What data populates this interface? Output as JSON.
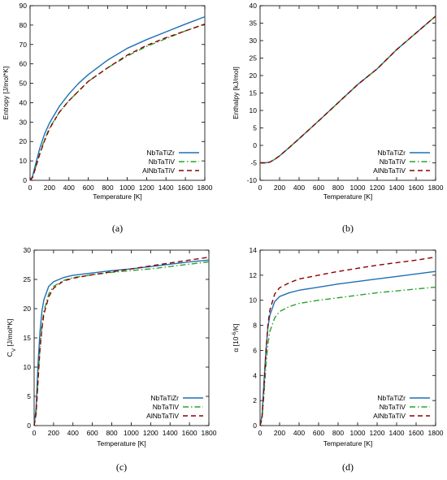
{
  "colors": {
    "NbTaTiZr": "#1f6fb4",
    "NbTaTiV": "#2ca02c",
    "AlNbTaTiV": "#8b0000"
  },
  "chart_data": [
    {
      "type": "line",
      "caption": "(a)",
      "xlabel": "Temperature [K]",
      "ylabel": "Entropy [J/mol*K]",
      "xlim": [
        0,
        1800
      ],
      "ylim": [
        0,
        90
      ],
      "xticks": [
        0,
        200,
        400,
        600,
        800,
        1000,
        1200,
        1400,
        1600,
        1800
      ],
      "yticks": [
        0,
        10,
        20,
        30,
        40,
        50,
        60,
        70,
        80,
        90
      ],
      "legend_position": "bottom-right",
      "series": [
        {
          "name": "NbTaTiZr",
          "style": "solid",
          "x": [
            0,
            25,
            50,
            100,
            150,
            200,
            300,
            400,
            500,
            600,
            800,
            1000,
            1200,
            1400,
            1600,
            1800
          ],
          "y": [
            0,
            2,
            7,
            16.5,
            24,
            29.5,
            38,
            44.5,
            50,
            54.5,
            62,
            68,
            72.5,
            76.5,
            80.5,
            84.3
          ]
        },
        {
          "name": "NbTaTiV",
          "style": "dashdot",
          "x": [
            0,
            25,
            50,
            100,
            150,
            200,
            300,
            400,
            500,
            600,
            800,
            1000,
            1200,
            1400,
            1600,
            1800
          ],
          "y": [
            0,
            1.5,
            5.5,
            14,
            21,
            27,
            35,
            41,
            46,
            51,
            58,
            64,
            69,
            73,
            77,
            80.5
          ]
        },
        {
          "name": "AlNbTaTiV",
          "style": "dashed",
          "x": [
            0,
            25,
            50,
            100,
            150,
            200,
            300,
            400,
            500,
            600,
            800,
            1000,
            1200,
            1400,
            1600,
            1800
          ],
          "y": [
            0,
            1.4,
            5.3,
            13.5,
            20.5,
            26.5,
            35,
            41,
            46,
            51,
            58,
            64.5,
            69.5,
            73.5,
            77,
            80.5
          ]
        }
      ]
    },
    {
      "type": "line",
      "caption": "(b)",
      "xlabel": "Temperature [K]",
      "ylabel": "Enthalpy [kJ/mol]",
      "xlim": [
        0,
        1800
      ],
      "ylim": [
        -10,
        40
      ],
      "xticks": [
        0,
        200,
        400,
        600,
        800,
        1000,
        1200,
        1400,
        1600,
        1800
      ],
      "yticks": [
        -10,
        -5,
        0,
        5,
        10,
        15,
        20,
        25,
        30,
        35,
        40
      ],
      "legend_position": "bottom-right",
      "series": [
        {
          "name": "NbTaTiZr",
          "style": "solid",
          "x": [
            0,
            50,
            100,
            150,
            200,
            300,
            400,
            600,
            800,
            1000,
            1200,
            1400,
            1600,
            1800
          ],
          "y": [
            -5,
            -5,
            -4.8,
            -4,
            -3,
            -0.6,
            1.9,
            7,
            12.2,
            17.4,
            21.9,
            27.4,
            32.2,
            37
          ]
        },
        {
          "name": "NbTaTiV",
          "style": "dashdot",
          "x": [
            0,
            50,
            100,
            150,
            200,
            300,
            400,
            600,
            800,
            1000,
            1200,
            1400,
            1600,
            1800
          ],
          "y": [
            -5,
            -5,
            -4.8,
            -4,
            -3,
            -0.6,
            1.9,
            7,
            12.2,
            17.4,
            21.9,
            27.4,
            32.2,
            37
          ]
        },
        {
          "name": "AlNbTaTiV",
          "style": "dashed",
          "x": [
            0,
            50,
            100,
            150,
            200,
            300,
            400,
            600,
            800,
            1000,
            1200,
            1400,
            1600,
            1800
          ],
          "y": [
            -5,
            -5,
            -4.8,
            -4,
            -3,
            -0.6,
            1.9,
            7,
            12.2,
            17.4,
            21.9,
            27.4,
            32.2,
            37
          ]
        }
      ]
    },
    {
      "type": "line",
      "caption": "(c)",
      "xlabel": "Temperature [K]",
      "ylabel_main": "C",
      "ylabel_sub": "V",
      "ylabel_rest": " [J/mol*K]",
      "xlim": [
        0,
        1800
      ],
      "ylim": [
        0,
        30
      ],
      "xticks": [
        0,
        200,
        400,
        600,
        800,
        1000,
        1200,
        1400,
        1600,
        1800
      ],
      "yticks": [
        0,
        5,
        10,
        15,
        20,
        25,
        30
      ],
      "legend_position": "bottom-right",
      "series": [
        {
          "name": "NbTaTiZr",
          "style": "solid",
          "x": [
            0,
            20,
            40,
            60,
            80,
            100,
            150,
            200,
            300,
            400,
            600,
            800,
            1000,
            1200,
            1400,
            1600,
            1800
          ],
          "y": [
            0,
            3,
            10.5,
            16,
            19.5,
            21.5,
            23.8,
            24.6,
            25.3,
            25.7,
            26.1,
            26.5,
            26.8,
            27.2,
            27.6,
            28,
            28.3
          ]
        },
        {
          "name": "NbTaTiV",
          "style": "dashdot",
          "x": [
            0,
            20,
            40,
            60,
            80,
            100,
            150,
            200,
            300,
            400,
            600,
            800,
            1000,
            1200,
            1400,
            1600,
            1800
          ],
          "y": [
            0,
            2,
            8,
            13.5,
            17,
            19.5,
            22.5,
            23.8,
            24.8,
            25.3,
            25.8,
            26.2,
            26.5,
            26.8,
            27.2,
            27.6,
            28
          ]
        },
        {
          "name": "AlNbTaTiV",
          "style": "dashed",
          "x": [
            0,
            20,
            40,
            60,
            80,
            100,
            150,
            200,
            300,
            400,
            600,
            800,
            1000,
            1200,
            1400,
            1600,
            1800
          ],
          "y": [
            0,
            2,
            7.5,
            13,
            16.5,
            19,
            22,
            23.5,
            24.7,
            25.2,
            25.8,
            26.3,
            26.8,
            27.3,
            27.8,
            28.3,
            28.8
          ]
        }
      ]
    },
    {
      "type": "line",
      "caption": "(d)",
      "xlabel": "Temperature [K]",
      "ylabel_main": "α [10",
      "ylabel_sup": "-6",
      "ylabel_rest": "/K]",
      "xlim": [
        0,
        1800
      ],
      "ylim": [
        0,
        14
      ],
      "xticks": [
        0,
        200,
        400,
        600,
        800,
        1000,
        1200,
        1400,
        1600,
        1800
      ],
      "yticks": [
        0,
        2,
        4,
        6,
        8,
        10,
        12,
        14
      ],
      "legend_position": "bottom-right",
      "series": [
        {
          "name": "NbTaTiZr",
          "style": "solid",
          "x": [
            0,
            20,
            40,
            60,
            80,
            100,
            150,
            200,
            300,
            400,
            600,
            800,
            1000,
            1200,
            1400,
            1600,
            1800
          ],
          "y": [
            0,
            0.8,
            3.5,
            6,
            7.8,
            8.8,
            9.9,
            10.3,
            10.6,
            10.8,
            11.05,
            11.3,
            11.5,
            11.7,
            11.9,
            12.1,
            12.3
          ]
        },
        {
          "name": "NbTaTiV",
          "style": "dashdot",
          "x": [
            0,
            20,
            40,
            60,
            80,
            100,
            150,
            200,
            300,
            400,
            600,
            800,
            1000,
            1200,
            1400,
            1600,
            1800
          ],
          "y": [
            0,
            0.5,
            2.5,
            4.8,
            6.5,
            7.5,
            8.6,
            9.1,
            9.5,
            9.75,
            10,
            10.2,
            10.4,
            10.6,
            10.75,
            10.9,
            11.05
          ]
        },
        {
          "name": "AlNbTaTiV",
          "style": "dashed",
          "x": [
            0,
            20,
            40,
            60,
            80,
            100,
            150,
            200,
            300,
            400,
            600,
            800,
            1000,
            1200,
            1400,
            1600,
            1800
          ],
          "y": [
            0,
            0.6,
            3,
            5.8,
            8,
            9.2,
            10.5,
            11,
            11.4,
            11.7,
            12,
            12.3,
            12.55,
            12.8,
            13,
            13.2,
            13.45
          ]
        }
      ]
    }
  ]
}
